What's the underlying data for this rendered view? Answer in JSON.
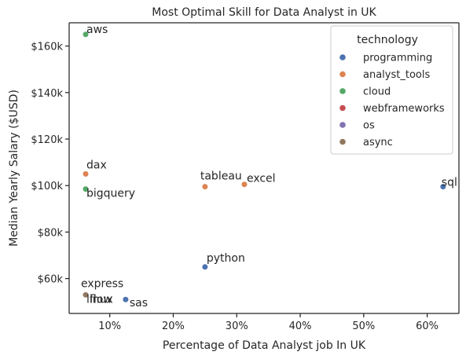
{
  "chart_data": {
    "type": "scatter",
    "title": "Most Optimal Skill for Data Analyst in UK",
    "xlabel": "Percentage of Data Analyst job In UK",
    "ylabel": "Median Yearly Salary ($USD)",
    "xlim": [
      3.6,
      65.0
    ],
    "ylim": [
      45000,
      170000
    ],
    "xticks": [
      10,
      20,
      30,
      40,
      50,
      60
    ],
    "xtick_labels": [
      "10%",
      "20%",
      "30%",
      "40%",
      "50%",
      "60%"
    ],
    "yticks": [
      60000,
      80000,
      100000,
      120000,
      140000,
      160000
    ],
    "ytick_labels": [
      "$60k",
      "$80k",
      "$100k",
      "$120k",
      "$140k",
      "$160k"
    ],
    "grid": false,
    "legend": {
      "title": "technology",
      "placement": "top-right",
      "entries": [
        {
          "name": "programming",
          "color": "#4c72b0"
        },
        {
          "name": "analyst_tools",
          "color": "#dd8452"
        },
        {
          "name": "cloud",
          "color": "#55a868"
        },
        {
          "name": "webframeworks",
          "color": "#c44e52"
        },
        {
          "name": "os",
          "color": "#8172b3"
        },
        {
          "name": "async",
          "color": "#937860"
        }
      ]
    },
    "points": [
      {
        "label": "aws",
        "x": 6.2,
        "y": 165000,
        "tech": "cloud"
      },
      {
        "label": "dax",
        "x": 6.2,
        "y": 105000,
        "tech": "analyst_tools"
      },
      {
        "label": "bigquery",
        "x": 6.2,
        "y": 98500,
        "tech": "cloud"
      },
      {
        "label": "tableau",
        "x": 25.0,
        "y": 99500,
        "tech": "analyst_tools"
      },
      {
        "label": "excel",
        "x": 31.2,
        "y": 100500,
        "tech": "analyst_tools"
      },
      {
        "label": "sql",
        "x": 62.5,
        "y": 99500,
        "tech": "programming"
      },
      {
        "label": "python",
        "x": 25.0,
        "y": 65000,
        "tech": "programming"
      },
      {
        "label": "express",
        "x": 6.2,
        "y": 53000,
        "tech": "webframeworks"
      },
      {
        "label": "linux",
        "x": 6.2,
        "y": 53000,
        "tech": "os"
      },
      {
        "label": "flow",
        "x": 6.2,
        "y": 53000,
        "tech": "async"
      },
      {
        "label": "sas",
        "x": 12.5,
        "y": 51000,
        "tech": "programming"
      }
    ]
  }
}
